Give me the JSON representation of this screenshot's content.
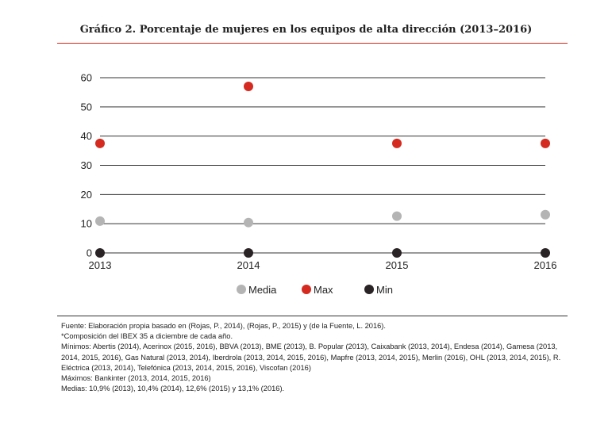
{
  "chart_data": {
    "type": "scatter",
    "title": "Gráfico 2. Porcentaje de mujeres en los equipos de alta dirección (2013–2016)",
    "categories": [
      "2013",
      "2014",
      "2015",
      "2016"
    ],
    "yticks": [
      "0",
      "10",
      "20",
      "30",
      "40",
      "50",
      "60"
    ],
    "ylim": [
      0,
      60
    ],
    "grid": true,
    "legend_position": "bottom-center",
    "series": [
      {
        "name": "Media",
        "color": "#b4b4b4",
        "values": [
          10.9,
          10.4,
          12.6,
          13.1
        ]
      },
      {
        "name": "Max",
        "color": "#d42a1f",
        "values": [
          37.5,
          57,
          37.5,
          37.5
        ]
      },
      {
        "name": "Min",
        "color": "#2a2325",
        "values": [
          0,
          0,
          0,
          0
        ]
      }
    ]
  },
  "notes": [
    "Fuente: Elaboración propia basado en (Rojas, P., 2014), (Rojas, P., 2015) y (de la Fuente, L. 2016).",
    "*Composición del IBEX 35 a diciembre de cada año.",
    "Mínimos: Abertis (2014), Acerinox (2015, 2016), BBVA (2013), BME (2013), B. Popular (2013), Caixabank (2013, 2014), Endesa (2014), Gamesa (2013, 2014, 2015, 2016), Gas Natural (2013, 2014), Iberdrola (2013, 2014, 2015, 2016), Mapfre (2013, 2014, 2015), Merlin (2016), OHL (2013, 2014, 2015), R. Eléctrica (2013, 2014), Telefónica (2013, 2014, 2015, 2016), Viscofan (2016)",
    "Máximos: Bankinter (2013, 2014, 2015, 2016)",
    "Medias: 10,9% (2013), 10,4% (2014), 12,6% (2015) y 13,1% (2016)."
  ]
}
